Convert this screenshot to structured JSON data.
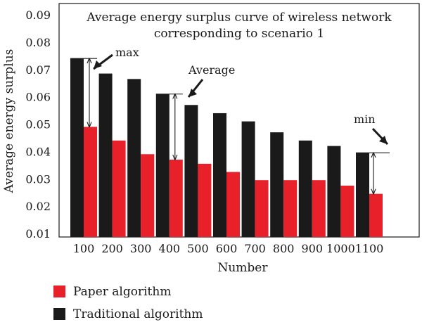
{
  "chart_data": {
    "type": "bar",
    "title_lines": [
      "Average energy surplus curve of wireless network",
      "corresponding to scenario 1"
    ],
    "xlabel": "Number",
    "ylabel": "Average energy surplus",
    "categories": [
      "100",
      "200",
      "300",
      "400",
      "500",
      "600",
      "700",
      "800",
      "900",
      "1000",
      "1100"
    ],
    "ylim": [
      0.01,
      0.09
    ],
    "yticks": [
      "0.01",
      "0.02",
      "0.03",
      "0.04",
      "0.05",
      "0.06",
      "0.07",
      "0.08",
      "0.09"
    ],
    "series": [
      {
        "name": "Traditional algorithm",
        "color": "#1a1a1a",
        "values": [
          0.074,
          0.0685,
          0.0665,
          0.061,
          0.057,
          0.054,
          0.051,
          0.047,
          0.044,
          0.042,
          0.0395
        ]
      },
      {
        "name": "Paper algorithm",
        "color": "#e8202a",
        "values": [
          0.049,
          0.044,
          0.039,
          0.037,
          0.0355,
          0.0325,
          0.0295,
          0.0295,
          0.0295,
          0.0275,
          0.0245
        ]
      }
    ],
    "annotations": [
      {
        "label": "max",
        "category_index": 0,
        "top": 0.074,
        "bottom": 0.049
      },
      {
        "label": "Average",
        "category_index": 3,
        "top": 0.061,
        "bottom": 0.037
      },
      {
        "label": "min",
        "category_index": 10,
        "top": 0.0395,
        "bottom": 0.0245
      }
    ],
    "legend": [
      "Paper algorithm",
      "Traditional algorithm"
    ],
    "legend_position": "bottom-left",
    "grid": false
  }
}
